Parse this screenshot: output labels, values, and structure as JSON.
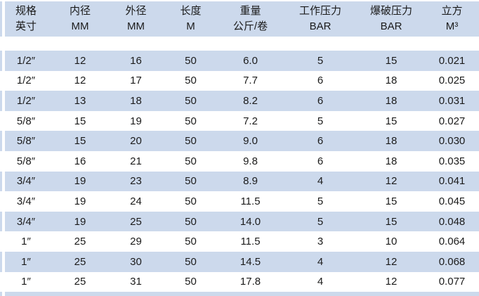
{
  "colors": {
    "row_blue": "#ccd9ec",
    "row_white": "#ffffff",
    "text": "#1b1b1b"
  },
  "table": {
    "columns": [
      {
        "line1": "规格",
        "line2": "英寸"
      },
      {
        "line1": "内径",
        "line2": "MM"
      },
      {
        "line1": "外径",
        "line2": "MM"
      },
      {
        "line1": "长度",
        "line2": "M"
      },
      {
        "line1": "重量",
        "line2": "公斤/卷"
      },
      {
        "line1": "工作压力",
        "line2": "BAR"
      },
      {
        "line1": "爆破压力",
        "line2": "BAR"
      },
      {
        "line1": "立方",
        "line2": "M³"
      }
    ],
    "rows": [
      [
        "1/2″",
        "12",
        "16",
        "50",
        "6.0",
        "5",
        "15",
        "0.021"
      ],
      [
        "1/2″",
        "12",
        "17",
        "50",
        "7.7",
        "6",
        "18",
        "0.025"
      ],
      [
        "1/2″",
        "13",
        "18",
        "50",
        "8.2",
        "6",
        "18",
        "0.031"
      ],
      [
        "5/8″",
        "15",
        "19",
        "50",
        "7.2",
        "5",
        "15",
        "0.027"
      ],
      [
        "5/8″",
        "15",
        "20",
        "50",
        "9.0",
        "6",
        "18",
        "0.030"
      ],
      [
        "5/8″",
        "16",
        "21",
        "50",
        "9.8",
        "6",
        "18",
        "0.035"
      ],
      [
        "3/4″",
        "19",
        "23",
        "50",
        "8.9",
        "4",
        "12",
        "0.041"
      ],
      [
        "3/4″",
        "19",
        "24",
        "50",
        "11.5",
        "5",
        "15",
        "0.045"
      ],
      [
        "3/4″",
        "19",
        "25",
        "50",
        "14.0",
        "5",
        "15",
        "0.048"
      ],
      [
        "1″",
        "25",
        "29",
        "50",
        "11.5",
        "3",
        "10",
        "0.064"
      ],
      [
        "1″",
        "25",
        "30",
        "50",
        "14.5",
        "4",
        "12",
        "0.068"
      ],
      [
        "1″",
        "25",
        "31",
        "50",
        "17.8",
        "4",
        "12",
        "0.077"
      ]
    ]
  }
}
